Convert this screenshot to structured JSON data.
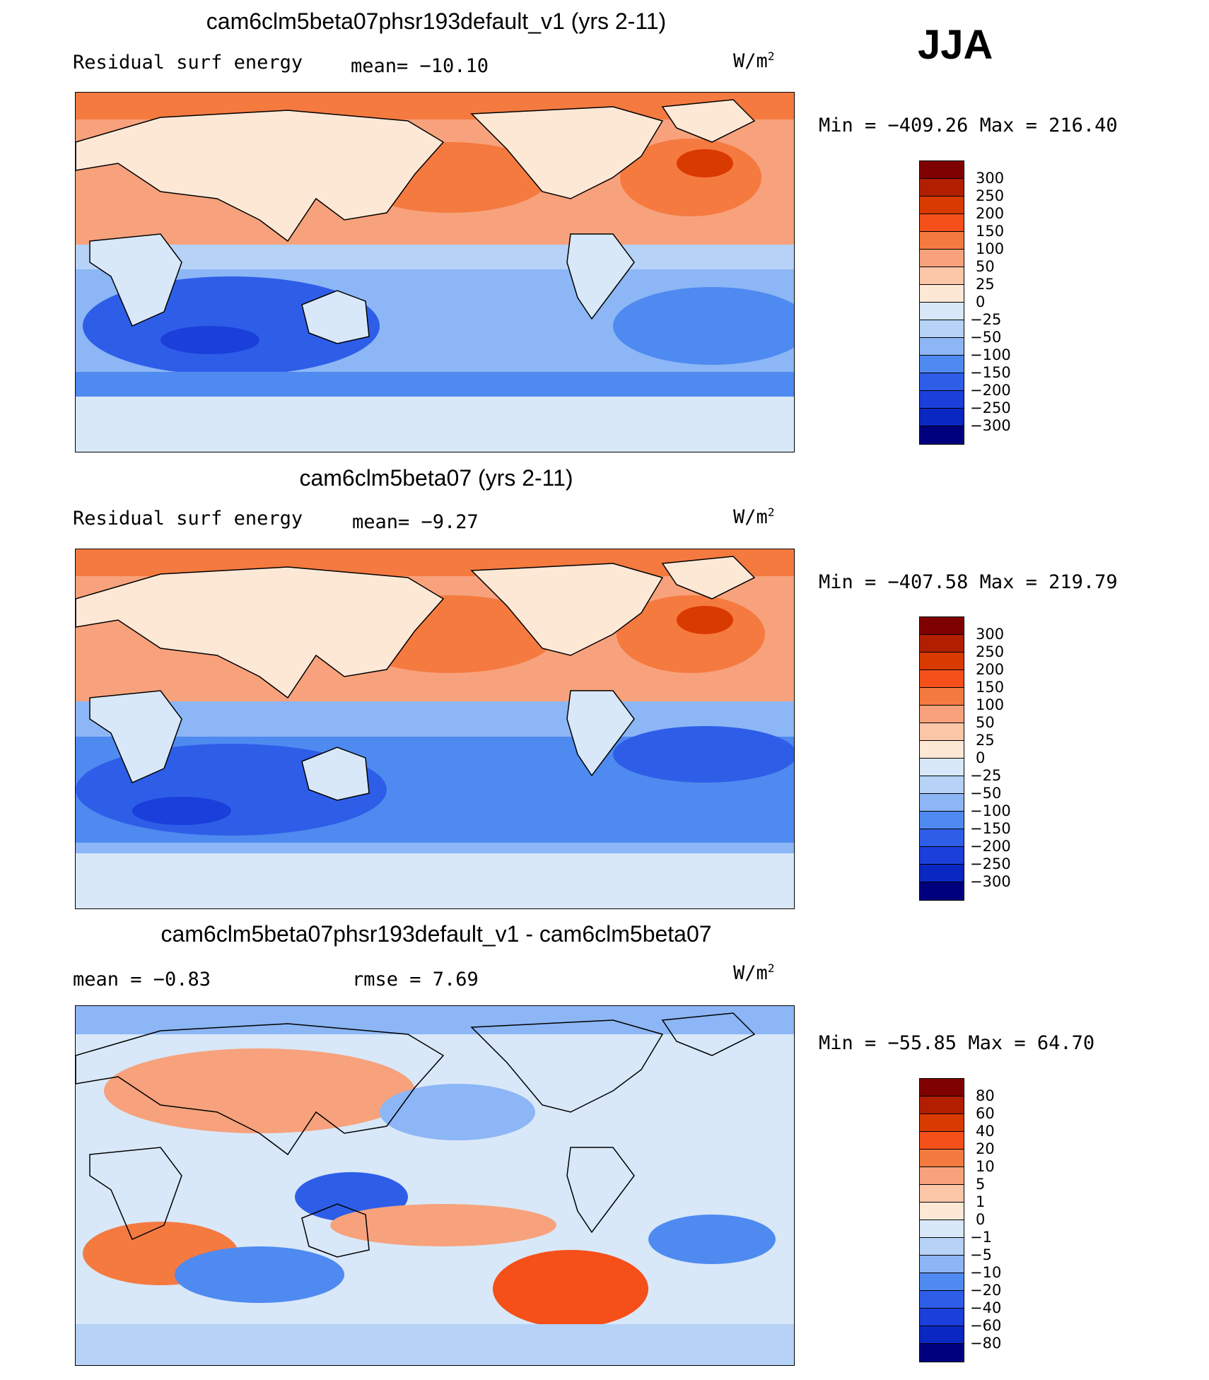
{
  "season": "JJA",
  "panels": [
    {
      "id": "case",
      "title": "cam6clm5beta07phsr193default_v1 (yrs 2-11)",
      "left_label": "Residual surf energy",
      "center_label": "mean= −10.10",
      "units": "W/m",
      "units_exp": "2",
      "minmax": "Min = −409.26 Max = 216.40",
      "levels": [
        "300",
        "250",
        "200",
        "150",
        "100",
        "50",
        "25",
        "0",
        "−25",
        "−50",
        "−100",
        "−150",
        "−200",
        "−250",
        "−300"
      ],
      "colors": [
        "#7f0000",
        "#b21f00",
        "#d93a00",
        "#f5501a",
        "#f57a40",
        "#f7a27c",
        "#fbc5a8",
        "#fde8d6",
        "#d8e8f8",
        "#b6d2f7",
        "#8cb6f5",
        "#4f8af0",
        "#2e5ee8",
        "#1a3fdb",
        "#0b27c2",
        "#00007f"
      ]
    },
    {
      "id": "control",
      "title": "cam6clm5beta07 (yrs 2-11)",
      "left_label": "Residual surf energy",
      "center_label": "mean=  −9.27",
      "units": "W/m",
      "units_exp": "2",
      "minmax": "Min = −407.58 Max = 219.79",
      "levels": [
        "300",
        "250",
        "200",
        "150",
        "100",
        "50",
        "25",
        "0",
        "−25",
        "−50",
        "−100",
        "−150",
        "−200",
        "−250",
        "−300"
      ],
      "colors": [
        "#7f0000",
        "#b21f00",
        "#d93a00",
        "#f5501a",
        "#f57a40",
        "#f7a27c",
        "#fbc5a8",
        "#fde8d6",
        "#d8e8f8",
        "#b6d2f7",
        "#8cb6f5",
        "#4f8af0",
        "#2e5ee8",
        "#1a3fdb",
        "#0b27c2",
        "#00007f"
      ]
    },
    {
      "id": "diff",
      "title": "cam6clm5beta07phsr193default_v1 - cam6clm5beta07",
      "left_label": "mean =   −0.83",
      "center_label": "rmse =    7.69",
      "units": "W/m",
      "units_exp": "2",
      "minmax": "Min = −55.85 Max =  64.70",
      "levels": [
        "80",
        "60",
        "40",
        "20",
        "10",
        "5",
        "1",
        "0",
        "−1",
        "−5",
        "−10",
        "−20",
        "−40",
        "−60",
        "−80"
      ],
      "colors": [
        "#7f0000",
        "#b21f00",
        "#d93a00",
        "#f5501a",
        "#f57a40",
        "#f7a27c",
        "#fbc5a8",
        "#fde8d6",
        "#d8e8f8",
        "#b6d2f7",
        "#8cb6f5",
        "#4f8af0",
        "#2e5ee8",
        "#1a3fdb",
        "#0b27c2",
        "#00007f"
      ]
    }
  ],
  "chart_data": [
    {
      "type": "heatmap",
      "title": "cam6clm5beta07phsr193default_v1 (yrs 2-11)",
      "variable": "Residual surf energy",
      "mean": -10.1,
      "min": -409.26,
      "max": 216.4,
      "units": "W/m2",
      "contour_levels": [
        -300,
        -250,
        -200,
        -150,
        -100,
        -50,
        -25,
        0,
        25,
        50,
        100,
        150,
        200,
        250,
        300
      ]
    },
    {
      "type": "heatmap",
      "title": "cam6clm5beta07 (yrs 2-11)",
      "variable": "Residual surf energy",
      "mean": -9.27,
      "min": -407.58,
      "max": 219.79,
      "units": "W/m2",
      "contour_levels": [
        -300,
        -250,
        -200,
        -150,
        -100,
        -50,
        -25,
        0,
        25,
        50,
        100,
        150,
        200,
        250,
        300
      ]
    },
    {
      "type": "heatmap",
      "title": "cam6clm5beta07phsr193default_v1 - cam6clm5beta07",
      "mean": -0.83,
      "rmse": 7.69,
      "min": -55.85,
      "max": 64.7,
      "units": "W/m2",
      "contour_levels": [
        -80,
        -60,
        -40,
        -20,
        -10,
        -5,
        -1,
        0,
        1,
        5,
        10,
        20,
        40,
        60,
        80
      ]
    }
  ]
}
